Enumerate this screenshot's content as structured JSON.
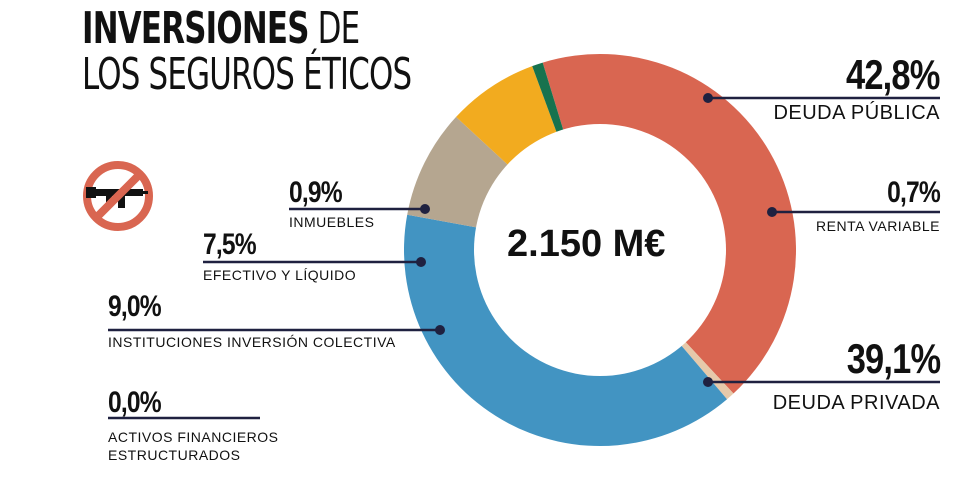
{
  "title": {
    "bold": "INVERSIONES",
    "rest_line1": "DE",
    "line2": "LOS SEGUROS ÉTICOS"
  },
  "icons": {
    "no_weapons": "no-weapons-icon"
  },
  "chart_data": {
    "type": "pie",
    "donut": true,
    "center_label": "2.150 M€",
    "slices": [
      {
        "name": "DEUDA PÚBLICA",
        "pct_label": "42,8%",
        "value": 42.8,
        "color": "#d96651"
      },
      {
        "name": "RENTA VARIABLE",
        "pct_label": "0,7%",
        "value": 0.7,
        "color": "#e6c9aa"
      },
      {
        "name": "DEUDA PRIVADA",
        "pct_label": "39,1%",
        "value": 39.1,
        "color": "#4294c2"
      },
      {
        "name": "ACTIVOS FINANCIEROS ESTRUCTURADOS",
        "pct_label": "0,0%",
        "value": 0.0,
        "color": "#9e9e9e"
      },
      {
        "name": "INSTITUCIONES INVERSIÓN COLECTIVA",
        "pct_label": "9,0%",
        "value": 9.0,
        "color": "#b5a690"
      },
      {
        "name": "EFECTIVO Y LÍQUIDO",
        "pct_label": "7,5%",
        "value": 7.5,
        "color": "#f2ab1f"
      },
      {
        "name": "INMUEBLES",
        "pct_label": "0,9%",
        "value": 0.9,
        "color": "#17724e"
      }
    ],
    "line_color": "#1f2140"
  }
}
